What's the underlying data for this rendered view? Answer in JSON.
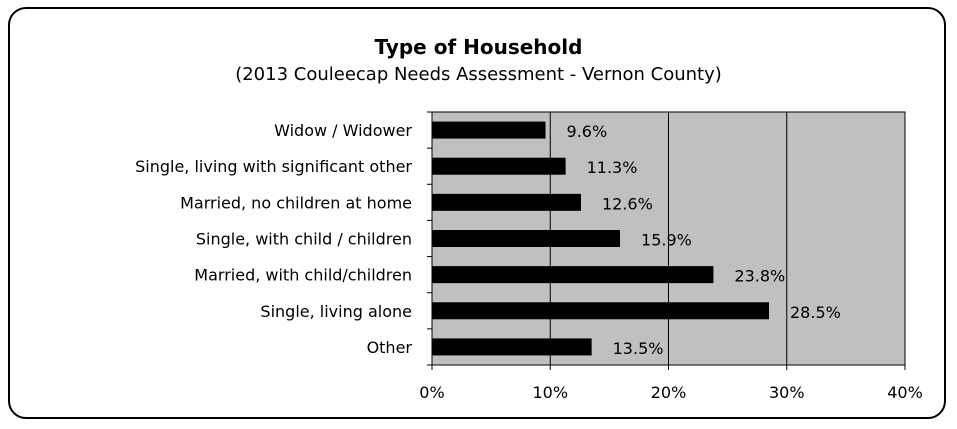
{
  "chart_data": {
    "type": "bar",
    "orientation": "horizontal",
    "title": "Type of Household",
    "subtitle": "(2013 Couleecap Needs Assessment - Vernon County)",
    "categories": [
      "Widow / Widower",
      "Single, living with significant other",
      "Married, no children at home",
      "Single, with child / children",
      "Married, with child/children",
      "Single, living alone",
      "Other"
    ],
    "values": [
      9.6,
      11.3,
      12.6,
      15.9,
      23.8,
      28.5,
      13.5
    ],
    "data_labels": [
      "9.6%",
      "11.3%",
      "12.6%",
      "15.9%",
      "23.8%",
      "28.5%",
      "13.5%"
    ],
    "xlim": [
      0,
      40
    ],
    "xticks": [
      0,
      10,
      20,
      30,
      40
    ],
    "xtick_labels": [
      "0%",
      "10%",
      "20%",
      "30%",
      "40%"
    ],
    "grid": true,
    "legend": false,
    "colors": {
      "plot_background": "#c0c0c0",
      "bar": "#000000",
      "gridline": "#000000"
    }
  }
}
